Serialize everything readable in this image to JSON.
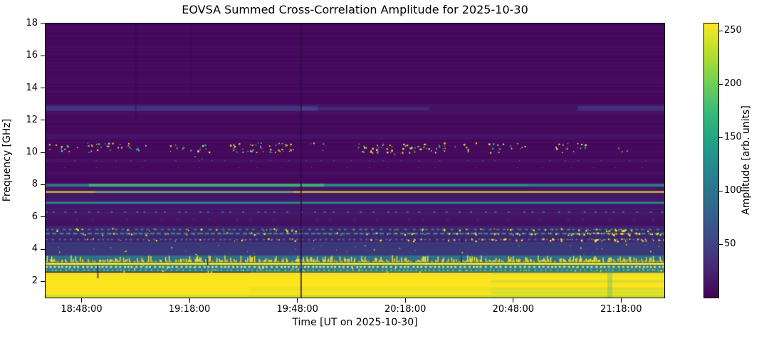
{
  "title": "EOVSA Summed Cross-Correlation Amplitude for 2025-10-30",
  "x_axis": {
    "label": "Time [UT on 2025-10-30]",
    "ticks": [
      "18:48:00",
      "19:18:00",
      "19:48:00",
      "20:18:00",
      "20:48:00",
      "21:18:00"
    ]
  },
  "y_axis": {
    "label": "Frequency [GHz]",
    "ticks": [
      2,
      4,
      6,
      8,
      10,
      12,
      14,
      16,
      18
    ]
  },
  "colorbar": {
    "label": "Amplitude [arb. units]",
    "ticks": [
      50,
      100,
      150,
      200,
      250
    ],
    "vmin": 0,
    "vmax": 257,
    "gradient": [
      "#440154",
      "#482878",
      "#3e4a89",
      "#31688e",
      "#26828e",
      "#1f9e89",
      "#35b779",
      "#6ece58",
      "#b5de2b",
      "#fde725"
    ]
  },
  "chart_data": {
    "type": "heatmap",
    "title": "EOVSA Summed Cross-Correlation Amplitude for 2025-10-30",
    "xlabel": "Time [UT on 2025-10-30]",
    "ylabel": "Frequency [GHz]",
    "zlabel": "Amplitude [arb. units]",
    "x_range_ut": [
      "18:38:00",
      "21:30:00"
    ],
    "x_ticks": [
      "18:48:00",
      "19:18:00",
      "19:48:00",
      "20:18:00",
      "20:48:00",
      "21:18:00"
    ],
    "y_range_ghz": [
      1.0,
      18.0
    ],
    "y_ticks": [
      2,
      4,
      6,
      8,
      10,
      12,
      14,
      16,
      18
    ],
    "colormap": "viridis",
    "amplitude_range": [
      0,
      257
    ],
    "background_color": "#45085c",
    "noise": {
      "seed": 1234,
      "row_prob": 0.42,
      "dark_prob": 0.1,
      "max_y_freq": 2.6
    },
    "features": [
      {
        "kind": "rect",
        "f0": 13.0,
        "f1": 12.4,
        "x0": 0,
        "x1": 1,
        "color": "#3e4e8c",
        "alpha": 0.15
      },
      {
        "kind": "rect",
        "f0": 12.9,
        "f1": 12.58,
        "x0": 0,
        "x1": 0.44,
        "color": "#4a6db0",
        "alpha": 0.35
      },
      {
        "kind": "rect",
        "f0": 12.82,
        "f1": 12.62,
        "x0": 0.41,
        "x1": 0.62,
        "color": "#4a6db0",
        "alpha": 0.25
      },
      {
        "kind": "rect",
        "f0": 12.9,
        "f1": 12.58,
        "x0": 0.86,
        "x1": 1,
        "color": "#4a6db0",
        "alpha": 0.32
      },
      {
        "kind": "rect",
        "f0": 11.15,
        "f1": 10.85,
        "x0": 0,
        "x1": 1,
        "color": "#4d2a84",
        "alpha": 0.3
      },
      {
        "kind": "rect",
        "f0": 9.6,
        "f1": 9.38,
        "x0": 0,
        "x1": 1,
        "color": "#4d2d84",
        "alpha": 0.25
      },
      {
        "kind": "rect",
        "f0": 8.82,
        "f1": 8.64,
        "x0": 0,
        "x1": 1,
        "color": "#4d2d84",
        "alpha": 0.22
      },
      {
        "kind": "rect",
        "f0": 8.1,
        "f1": 6.05,
        "x0": 0,
        "x1": 1,
        "color": "#43398a",
        "alpha": 0.3
      },
      {
        "kind": "rect",
        "f0": 6.05,
        "f1": 5.45,
        "x0": 0,
        "x1": 1,
        "color": "#45357f",
        "alpha": 0.2
      },
      {
        "kind": "rect",
        "f0": 5.45,
        "f1": 4.45,
        "x0": 0,
        "x1": 1,
        "color": "#3e4a8a",
        "alpha": 0.42
      },
      {
        "kind": "rect",
        "f0": 4.45,
        "f1": 3.62,
        "x0": 0,
        "x1": 1,
        "color": "#36598c",
        "alpha": 0.6
      },
      {
        "kind": "rect",
        "f0": 3.62,
        "f1": 3.18,
        "x0": 0,
        "x1": 1,
        "color": "#2d7f8e",
        "alpha": 0.88
      },
      {
        "kind": "rect",
        "f0": 3.05,
        "f1": 2.6,
        "x0": 0,
        "x1": 1,
        "color": "#2f8a8c",
        "alpha": 0.92
      },
      {
        "kind": "rect",
        "f0": 2.55,
        "f1": 1.0,
        "x0": 0,
        "x1": 1,
        "color": "#fbe41e",
        "alpha": 1
      },
      {
        "kind": "hline",
        "f": 7.97,
        "h": 4,
        "x0": 0,
        "x1": 1,
        "color": "#2aa089",
        "alpha": 0.7
      },
      {
        "kind": "hline",
        "f": 7.97,
        "h": 4,
        "x0": 0.07,
        "x1": 0.45,
        "color": "#49c16b",
        "alpha": 0.75
      },
      {
        "kind": "hline",
        "f": 7.97,
        "h": 3,
        "x0": 0.45,
        "x1": 0.78,
        "color": "#2fa98a",
        "alpha": 0.45
      },
      {
        "kind": "hline",
        "f": 7.55,
        "h": 2,
        "x0": 0,
        "x1": 1,
        "color": "#eae41e",
        "alpha": 1
      },
      {
        "kind": "hline",
        "f": 7.55,
        "h": 2,
        "x0": 0.08,
        "x1": 0.4,
        "color": "#2ba49e",
        "alpha": 0.7
      },
      {
        "kind": "hline",
        "f": 6.88,
        "h": 3,
        "x0": 0,
        "x1": 1,
        "color": "#27958c",
        "alpha": 0.9
      },
      {
        "kind": "dashrow",
        "f": 6.3,
        "h": 2,
        "x0": 0,
        "x1": 1,
        "color": "#2c9d93",
        "alpha": 0.7,
        "dash": 3,
        "gap": 13
      },
      {
        "kind": "dashrow",
        "f": 9.5,
        "h": 1.5,
        "x0": 0,
        "x1": 1,
        "color": "#2f9d8f",
        "alpha": 0.4,
        "dash": 2,
        "gap": 30
      },
      {
        "kind": "dashrow",
        "f": 9.05,
        "h": 1.5,
        "x0": 0,
        "x1": 1,
        "color": "#2f9d8f",
        "alpha": 0.3,
        "dash": 2,
        "gap": 40
      },
      {
        "kind": "dashrow",
        "f": 5.85,
        "h": 1.5,
        "x0": 0,
        "x1": 1,
        "color": "#2f9d8f",
        "alpha": 0.35,
        "dash": 2,
        "gap": 32
      },
      {
        "kind": "dashrow",
        "f": 5.22,
        "h": 2,
        "x0": 0,
        "x1": 1,
        "color": "#2a9d8f",
        "alpha": 0.8,
        "dash": 4,
        "gap": 6
      },
      {
        "kind": "speckle",
        "f0": 5.3,
        "f1": 5.14,
        "clusters": [
          [
            0.0,
            0.6,
            0.05
          ],
          [
            0.6,
            1,
            0.1
          ]
        ],
        "colors": [
          [
            "#fde725",
            1
          ]
        ],
        "size": 2
      },
      {
        "kind": "dashrow",
        "f": 4.97,
        "h": 2.5,
        "x0": 0,
        "x1": 1,
        "color": "#27968f",
        "alpha": 0.9,
        "dash": 6,
        "gap": 3
      },
      {
        "kind": "speckle",
        "f0": 5.05,
        "f1": 4.9,
        "clusters": [
          [
            0.05,
            0.5,
            0.06
          ],
          [
            0.5,
            0.88,
            0.12
          ],
          [
            0.88,
            1,
            0.3
          ]
        ],
        "colors": [
          [
            "#fde725",
            1
          ]
        ],
        "size": 2
      },
      {
        "kind": "dashrow",
        "f": 4.6,
        "h": 2,
        "x0": 0,
        "x1": 1,
        "color": "#2a9d8f",
        "alpha": 0.75,
        "dash": 3,
        "gap": 5
      },
      {
        "kind": "speckle",
        "f0": 4.68,
        "f1": 4.53,
        "clusters": [
          [
            0,
            0.6,
            0.05
          ],
          [
            0.6,
            0.88,
            0.1
          ],
          [
            0.88,
            1,
            0.28
          ]
        ],
        "colors": [
          [
            "#fde725",
            1
          ]
        ],
        "size": 2
      },
      {
        "kind": "speckle",
        "f0": 4.35,
        "f1": 3.7,
        "clusters": [
          [
            0,
            1,
            0.04
          ]
        ],
        "colors": [
          [
            "#fde725",
            0.7
          ],
          [
            "#35b779",
            0.3
          ]
        ],
        "size": 1.5
      },
      {
        "kind": "ticks",
        "f": 3.22,
        "x0": 0,
        "x1": 1,
        "color": "#fde725",
        "alpha": 0.95,
        "density": 0.45,
        "step": 1.6,
        "hmin": 2,
        "hmax": 9,
        "w": 1.5,
        "dir": "up"
      },
      {
        "kind": "dashrow",
        "f": 3.24,
        "h": 2,
        "x0": 0,
        "x1": 1,
        "color": "#f2e635",
        "alpha": 0.6,
        "dash": 3,
        "gap": 4
      },
      {
        "kind": "hline",
        "f": 3.1,
        "h": 3,
        "x0": 0,
        "x1": 1,
        "color": "#f6e41d",
        "alpha": 1
      },
      {
        "kind": "dashrow",
        "f": 2.9,
        "h": 2.5,
        "x0": 0,
        "x1": 1,
        "color": "#f2eda0",
        "alpha": 0.85,
        "dash": 3,
        "gap": 3
      },
      {
        "kind": "dashrow",
        "f": 2.7,
        "h": 2,
        "x0": 0,
        "x1": 1,
        "color": "#e8e239",
        "alpha": 0.6,
        "dash": 2,
        "gap": 5
      },
      {
        "kind": "speckle",
        "f0": 3.0,
        "f1": 2.62,
        "clusters": [
          [
            0,
            1,
            0.07
          ]
        ],
        "colors": [
          [
            "#fde725",
            1
          ]
        ],
        "size": 1.5
      },
      {
        "kind": "stripes",
        "f0": 2.74,
        "f1": 2.35,
        "x0": 0.34,
        "x1": 0.72,
        "color": "#8ed04a",
        "alpha": 0.35,
        "prob": 0.35,
        "sh": 2
      },
      {
        "kind": "stripes",
        "f0": 2.6,
        "f1": 1.05,
        "x0": 0.33,
        "x1": 1,
        "color": "#a5d83c",
        "alpha": 0.3,
        "prob": 0.25,
        "sh": 2
      },
      {
        "kind": "stripes",
        "f0": 2.7,
        "f1": 1.0,
        "x0": 0.72,
        "x1": 1,
        "color": "#63c75e",
        "alpha": 0.4,
        "prob": 0.4,
        "sh": 2
      },
      {
        "kind": "rect",
        "f0": 1.18,
        "f1": 1.0,
        "x0": 0,
        "x1": 1,
        "color": "#9ed93a",
        "alpha": 0.4
      },
      {
        "kind": "stripes",
        "f0": 2.55,
        "f1": 2.3,
        "x0": 0,
        "x1": 1,
        "color": "#cfe32c",
        "alpha": 0.4,
        "prob": 0.3,
        "sh": 1
      },
      {
        "kind": "vline",
        "x": 0.912,
        "f0": 2.9,
        "f1": 1.0,
        "w": 7,
        "color": "#2fa48c",
        "alpha": 0.28
      },
      {
        "kind": "speckle",
        "f0": 10.62,
        "f1": 10.02,
        "clusters": [
          [
            0.005,
            0.17,
            0.3
          ],
          [
            0.2,
            0.27,
            0.25
          ],
          [
            0.295,
            0.4,
            0.5
          ],
          [
            0.42,
            0.45,
            0.15
          ],
          [
            0.5,
            0.645,
            0.5
          ],
          [
            0.655,
            0.7,
            0.15
          ],
          [
            0.715,
            0.775,
            0.3
          ],
          [
            0.82,
            0.875,
            0.35
          ],
          [
            0.925,
            0.955,
            0.12
          ]
        ],
        "colors": [
          [
            "#fde725",
            0.5
          ],
          [
            "#21b07b",
            0.2
          ],
          [
            "#53cfc0",
            0.15
          ],
          [
            "#d9ecb0",
            0.15
          ]
        ],
        "size": 2
      },
      {
        "kind": "speckle",
        "f0": 9.95,
        "f1": 9.6,
        "clusters": [
          [
            0.22,
            0.27,
            0.05
          ],
          [
            0.56,
            0.61,
            0.06
          ]
        ],
        "colors": [
          [
            "#2fa88f",
            1
          ]
        ],
        "size": 1.5
      },
      {
        "kind": "vline",
        "x": 0.146,
        "f0": 18,
        "f1": 12.05,
        "w": 1,
        "color": "#360b4e",
        "alpha": 0.85
      },
      {
        "kind": "vline",
        "x": 0.235,
        "f0": 18,
        "f1": 13.7,
        "w": 1,
        "color": "#360b4e",
        "alpha": 0.7
      },
      {
        "kind": "vline",
        "x": 0.413,
        "f0": 18,
        "f1": 1.0,
        "w": 1.6,
        "color": "#2b0845",
        "alpha": 0.95
      },
      {
        "kind": "vline",
        "x": 0.0846,
        "f0": 3.0,
        "f1": 2.2,
        "w": 1.6,
        "color": "#33104f",
        "alpha": 0.9
      },
      {
        "kind": "vline",
        "x": 0.262,
        "f0": 3.4,
        "f1": 3.0,
        "w": 1.6,
        "color": "#3a1156",
        "alpha": 0.85
      },
      {
        "kind": "vline",
        "x": 0.672,
        "f0": 3.55,
        "f1": 3.2,
        "w": 1.6,
        "color": "#3a1156",
        "alpha": 0.8
      },
      {
        "kind": "vline",
        "x": 0.673,
        "f0": 4.7,
        "f1": 4.45,
        "w": 1.5,
        "color": "#33104f",
        "alpha": 0.75
      }
    ]
  }
}
